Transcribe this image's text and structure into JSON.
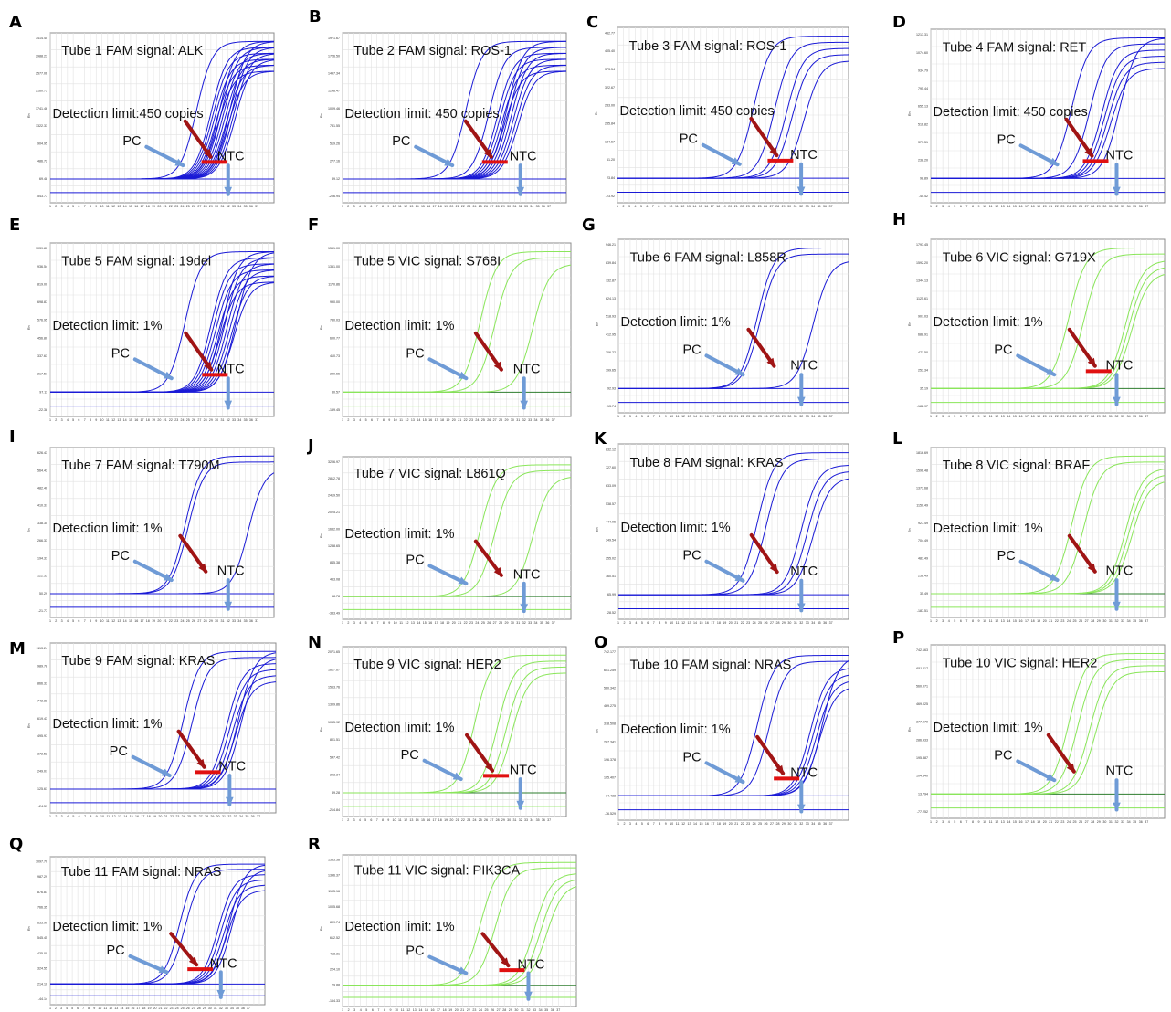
{
  "figure": {
    "labels": {
      "pc": "PC",
      "ntc": "NTC"
    }
  },
  "panels": [
    {
      "letter": "A",
      "title": "Tube 1 FAM signal: ALK",
      "limit": "Detection limit:450 copies",
      "dye": "FAM",
      "curves": [
        26,
        26.3,
        26.6,
        26.9,
        27.2,
        27.5,
        27.8,
        28.1,
        28.4,
        28.7,
        29,
        29.3,
        29.6,
        29.9,
        30.2
      ],
      "pcCt": 23.5,
      "marker": "bar",
      "yticks": [
        "3414.40",
        "2988.23",
        "2577.06",
        "2160.73",
        "1741.46",
        "1322.33",
        "904.95",
        "486.72",
        "69.48",
        "-543.77"
      ]
    },
    {
      "letter": "B",
      "title": "Tube 2 FAM signal: ROS-1",
      "limit": "Detection limit: 450 copies",
      "dye": "FAM",
      "curves": [
        23.5,
        25,
        25.4,
        25.8,
        26.2,
        26.6,
        27,
        27.4,
        27.8,
        28.2,
        28.6
      ],
      "pcCt": 19.5,
      "marker": "bar",
      "yticks": [
        "1971.67",
        "1726.50",
        "1497.34",
        "1248.47",
        "1009.46",
        "781.55",
        "519.26",
        "277.16",
        "39.12",
        "-206.94"
      ]
    },
    {
      "letter": "C",
      "title": "Tube 3 FAM signal: ROS-1",
      "limit": "Detection limit: 450 copies",
      "dye": "FAM",
      "curves": [
        24.5,
        26.5,
        27.5,
        29.5
      ],
      "pcCt": 21,
      "marker": "bar",
      "yticks": [
        "452.77",
        "405.40",
        "373.54",
        "322.67",
        "283.00",
        "235.84",
        "184.67",
        "61.20",
        "23.84",
        "-23.92"
      ]
    },
    {
      "letter": "D",
      "title": "Tube 4 FAM signal: RET",
      "limit": "Detection limit: 450 copies",
      "dye": "FAM",
      "curves": [
        24.5,
        26.5,
        27,
        27.5,
        28,
        29.5
      ],
      "pcCt": 21.5,
      "marker": "bar",
      "yticks": [
        "1213.31",
        "1074.60",
        "934.79",
        "795.44",
        "655.13",
        "516.82",
        "377.51",
        "238.20",
        "98.89",
        "-40.42"
      ]
    },
    {
      "letter": "E",
      "title": "Tube 5 FAM signal: 19del",
      "limit": "Detection limit: 1%",
      "dye": "FAM",
      "curves": [
        26,
        26.4,
        26.8,
        27.2,
        27.6,
        28,
        28.4,
        28.8,
        29.2,
        29.6,
        30,
        30.4
      ],
      "pcCt": 21.5,
      "marker": "bar",
      "yticks": [
        "1039.80",
        "936.54",
        "819.00",
        "698.87",
        "576.95",
        "456.80",
        "337.63",
        "217.57",
        "97.11",
        "-22.38"
      ]
    },
    {
      "letter": "F",
      "title": "Tube 5 VIC signal: S768I",
      "limit": "Detection limit: 1%",
      "dye": "VIC",
      "curves": [
        24,
        30.5
      ],
      "pcCt": 21.5,
      "marker": "none",
      "yticks": [
        "1551.00",
        "1351.00",
        "1170.86",
        "990.00",
        "780.03",
        "600.77",
        "410.73",
        "220.66",
        "30.57",
        "-159.45"
      ]
    },
    {
      "letter": "G",
      "title": "Tube 6 FAM signal: L858R",
      "limit": "Detection limit: 1%",
      "dye": "FAM",
      "curves": [
        22,
        31
      ],
      "pcCt": 21.5,
      "marker": "none",
      "yticks": [
        "946.21",
        "839.84",
        "732.87",
        "624.13",
        "518.93",
        "412.95",
        "306.22",
        "199.65",
        "92.93",
        "-13.74"
      ]
    },
    {
      "letter": "H",
      "title": "Tube 6 VIC signal: G719X",
      "limit": "Detection limit: 1%",
      "dye": "VIC",
      "curves": [
        23.5,
        30.5,
        31,
        31.5
      ],
      "pcCt": 21,
      "marker": "bar",
      "yticks": [
        "1793.45",
        "1592.20",
        "1344.13",
        "1125.61",
        "907.03",
        "688.91",
        "471.50",
        "253.34",
        "35.19",
        "-182.97"
      ]
    },
    {
      "letter": "I",
      "title": "Tube 7 FAM signal: T790M",
      "limit": "Detection limit: 1%",
      "dye": "FAM",
      "curves": [
        22,
        32.5
      ],
      "pcCt": 21.5,
      "marker": "none",
      "yticks": [
        "626.43",
        "564.43",
        "482.40",
        "410.37",
        "338.35",
        "266.33",
        "194.31",
        "122.33",
        "50.29",
        "-21.77"
      ]
    },
    {
      "letter": "J",
      "title": "Tube 7 VIC signal: L861Q",
      "limit": "Detection limit: 1%",
      "dye": "VIC",
      "curves": [
        24,
        30.5
      ],
      "pcCt": 21.5,
      "marker": "none",
      "yticks": [
        "3206.97",
        "2812.78",
        "2419.50",
        "2025.21",
        "1632.00",
        "1238.65",
        "845.38",
        "453.08",
        "58.78",
        "-333.49"
      ]
    },
    {
      "letter": "K",
      "title": "Tube 8 FAM signal: KRAS",
      "limit": "Detection limit: 1%",
      "dye": "FAM",
      "curves": [
        23,
        29,
        30,
        31
      ],
      "pcCt": 21.5,
      "marker": "none",
      "yticks": [
        "832.12",
        "727.60",
        "633.09",
        "538.57",
        "444.06",
        "349.54",
        "255.02",
        "160.51",
        "65.99",
        "-28.52"
      ]
    },
    {
      "letter": "L",
      "title": "Tube 8 VIC signal: BRAF",
      "limit": "Detection limit: 1%",
      "dye": "VIC",
      "curves": [
        23.5,
        30.5,
        31,
        31.5
      ],
      "pcCt": 21.5,
      "marker": "none",
      "yticks": [
        "1816.69",
        "1596.48",
        "1373.68",
        "1150.49",
        "927.49",
        "704.49",
        "481.49",
        "258.49",
        "35.49",
        "-187.51"
      ]
    },
    {
      "letter": "M",
      "title": "Tube 9 FAM signal: KRAS",
      "limit": "Detection limit: 1%",
      "dye": "FAM",
      "curves": [
        22.5,
        28.5,
        29,
        29.5,
        30,
        30.5,
        31
      ],
      "pcCt": 21,
      "marker": "bar",
      "yticks": [
        "1113.24",
        "989.78",
        "866.33",
        "742.88",
        "619.43",
        "495.97",
        "372.52",
        "249.07",
        "125.61",
        "-24.59"
      ]
    },
    {
      "letter": "N",
      "title": "Tube 9 VIC signal: HER2",
      "limit": "Detection limit: 1%",
      "dye": "VIC",
      "curves": [
        25,
        26.5,
        27.5
      ],
      "pcCt": 21,
      "marker": "bar",
      "yticks": [
        "2071.65",
        "1817.67",
        "1563.76",
        "1309.86",
        "1055.92",
        "801.51",
        "547.42",
        "293.34",
        "39.28",
        "-214.84"
      ]
    },
    {
      "letter": "O",
      "title": "Tube 10 FAM signal: NRAS",
      "limit": "Detection limit: 1%",
      "dye": "FAM",
      "curves": [
        23.5,
        30.5,
        31,
        31.5,
        32,
        32.5
      ],
      "pcCt": 21.5,
      "marker": "bar",
      "yticks": [
        "742.177",
        "651.259",
        "560.342",
        "469.275",
        "378.508",
        "287.341",
        "196.378",
        "105.407",
        "14.438",
        "-76.529"
      ]
    },
    {
      "letter": "P",
      "title": "Tube 10 VIC signal: HER2",
      "limit": "Detection limit: 1%",
      "dye": "VIC",
      "curves": [
        22.5,
        24.5,
        25.5
      ],
      "pcCt": 21,
      "marker": "none",
      "yticks": [
        "742.163",
        "651.117",
        "560.071",
        "469.025",
        "377.979",
        "286.933",
        "195.887",
        "104.840",
        "13.794",
        "-77.252"
      ]
    },
    {
      "letter": "Q",
      "title": "Tube 11 FAM signal: NRAS",
      "limit": "Detection limit: 1%",
      "dye": "FAM",
      "curves": [
        22.5,
        28.5,
        29,
        29.5,
        30,
        30.5,
        31
      ],
      "pcCt": 21.5,
      "marker": "bar",
      "yticks": [
        "1097.70",
        "987.29",
        "876.81",
        "766.35",
        "655.90",
        "545.45",
        "435.00",
        "324.55",
        "214.10",
        "-44.14"
      ]
    },
    {
      "letter": "R",
      "title": "Tube 11 VIC signal: PIK3CA",
      "limit": "Detection limit: 1%",
      "dye": "VIC",
      "curves": [
        23.5,
        30,
        31,
        32
      ],
      "pcCt": 21,
      "marker": "bar",
      "yticks": [
        "1583.58",
        "1396.37",
        "1195.16",
        "1005.68",
        "809.74",
        "612.52",
        "418.31",
        "224.10",
        "29.88",
        "-164.33"
      ]
    }
  ],
  "chart_data": [
    {
      "type": "line",
      "panel": "A",
      "title": "Tube 1 FAM signal: ALK",
      "annotations": [
        "Detection limit:450 copies",
        "PC",
        "NTC"
      ],
      "x": [
        1,
        40
      ],
      "series_ct": [
        23.5,
        26,
        26.3,
        26.6,
        26.9,
        27.2,
        27.5,
        27.8,
        28.1,
        28.4,
        28.7,
        29,
        29.3,
        29.6,
        29.9,
        30.2
      ]
    },
    {
      "type": "line",
      "panel": "B",
      "title": "Tube 2 FAM signal: ROS-1",
      "annotations": [
        "Detection limit: 450 copies",
        "PC",
        "NTC"
      ],
      "series_ct": [
        19.5,
        23.5,
        25,
        25.4,
        25.8,
        26.2,
        26.6,
        27,
        27.4,
        27.8,
        28.2,
        28.6
      ]
    },
    {
      "type": "line",
      "panel": "C",
      "title": "Tube 3 FAM signal: ROS-1",
      "annotations": [
        "Detection limit: 450 copies",
        "PC",
        "NTC"
      ],
      "series_ct": [
        21,
        24.5,
        26.5,
        27.5,
        29.5
      ]
    },
    {
      "type": "line",
      "panel": "D",
      "title": "Tube 4 FAM signal: RET",
      "annotations": [
        "Detection limit: 450 copies",
        "PC",
        "NTC"
      ],
      "series_ct": [
        21.5,
        24.5,
        26.5,
        27,
        27.5,
        28,
        29.5
      ]
    },
    {
      "type": "line",
      "panel": "E",
      "title": "Tube 5 FAM signal: 19del",
      "annotations": [
        "Detection limit: 1%",
        "PC",
        "NTC"
      ],
      "series_ct": [
        21.5,
        26,
        26.4,
        26.8,
        27.2,
        27.6,
        28,
        28.4,
        28.8,
        29.2,
        29.6,
        30,
        30.4
      ]
    },
    {
      "type": "line",
      "panel": "F",
      "title": "Tube 5 VIC signal: S768I",
      "annotations": [
        "Detection limit: 1%",
        "PC",
        "NTC"
      ],
      "series_ct": [
        21.5,
        24,
        30.5
      ]
    },
    {
      "type": "line",
      "panel": "G",
      "title": "Tube 6 FAM signal: L858R",
      "annotations": [
        "Detection limit: 1%",
        "PC",
        "NTC"
      ],
      "series_ct": [
        21.5,
        22,
        31
      ]
    },
    {
      "type": "line",
      "panel": "H",
      "title": "Tube 6 VIC signal: G719X",
      "annotations": [
        "Detection limit: 1%",
        "PC",
        "NTC"
      ],
      "series_ct": [
        21,
        23.5,
        30.5,
        31,
        31.5
      ]
    },
    {
      "type": "line",
      "panel": "I",
      "title": "Tube 7 FAM signal: T790M",
      "annotations": [
        "Detection limit: 1%",
        "PC",
        "NTC"
      ],
      "series_ct": [
        21.5,
        22,
        32.5
      ]
    },
    {
      "type": "line",
      "panel": "J",
      "title": "Tube 7 VIC signal: L861Q",
      "annotations": [
        "Detection limit: 1%",
        "PC",
        "NTC"
      ],
      "series_ct": [
        21.5,
        24,
        30.5
      ]
    },
    {
      "type": "line",
      "panel": "K",
      "title": "Tube 8 FAM signal: KRAS",
      "annotations": [
        "Detection limit: 1%",
        "PC",
        "NTC"
      ],
      "series_ct": [
        21.5,
        23,
        29,
        30,
        31
      ]
    },
    {
      "type": "line",
      "panel": "L",
      "title": "Tube 8 VIC signal: BRAF",
      "annotations": [
        "Detection limit: 1%",
        "PC",
        "NTC"
      ],
      "series_ct": [
        21.5,
        23.5,
        30.5,
        31,
        31.5
      ]
    },
    {
      "type": "line",
      "panel": "M",
      "title": "Tube 9 FAM signal: KRAS",
      "annotations": [
        "Detection limit: 1%",
        "PC",
        "NTC"
      ],
      "series_ct": [
        21,
        22.5,
        28.5,
        29,
        29.5,
        30,
        30.5,
        31
      ]
    },
    {
      "type": "line",
      "panel": "N",
      "title": "Tube 9 VIC signal: HER2",
      "annotations": [
        "Detection limit: 1%",
        "PC",
        "NTC"
      ],
      "series_ct": [
        21,
        25,
        26.5,
        27.5
      ]
    },
    {
      "type": "line",
      "panel": "O",
      "title": "Tube 10 FAM signal: NRAS",
      "annotations": [
        "Detection limit: 1%",
        "PC",
        "NTC"
      ],
      "series_ct": [
        21.5,
        23.5,
        30.5,
        31,
        31.5,
        32,
        32.5
      ]
    },
    {
      "type": "line",
      "panel": "P",
      "title": "Tube 10 VIC signal: HER2",
      "annotations": [
        "Detection limit: 1%",
        "PC",
        "NTC"
      ],
      "series_ct": [
        21,
        22.5,
        24.5,
        25.5
      ]
    },
    {
      "type": "line",
      "panel": "Q",
      "title": "Tube 11 FAM signal: NRAS",
      "annotations": [
        "Detection limit: 1%",
        "PC",
        "NTC"
      ],
      "series_ct": [
        21.5,
        22.5,
        28.5,
        29,
        29.5,
        30,
        30.5,
        31
      ]
    },
    {
      "type": "line",
      "panel": "R",
      "title": "Tube 11 VIC signal: PIK3CA",
      "annotations": [
        "Detection limit: 1%",
        "PC",
        "NTC"
      ],
      "series_ct": [
        21,
        23.5,
        30,
        31,
        32
      ]
    }
  ],
  "colors": {
    "fam": "#1a1ad6",
    "vic": "#8ae65a",
    "arrow_blue": "#6f9bd6",
    "arrow_red": "#a01414",
    "marker": "#e01010",
    "grid": "#e2e2e2"
  }
}
